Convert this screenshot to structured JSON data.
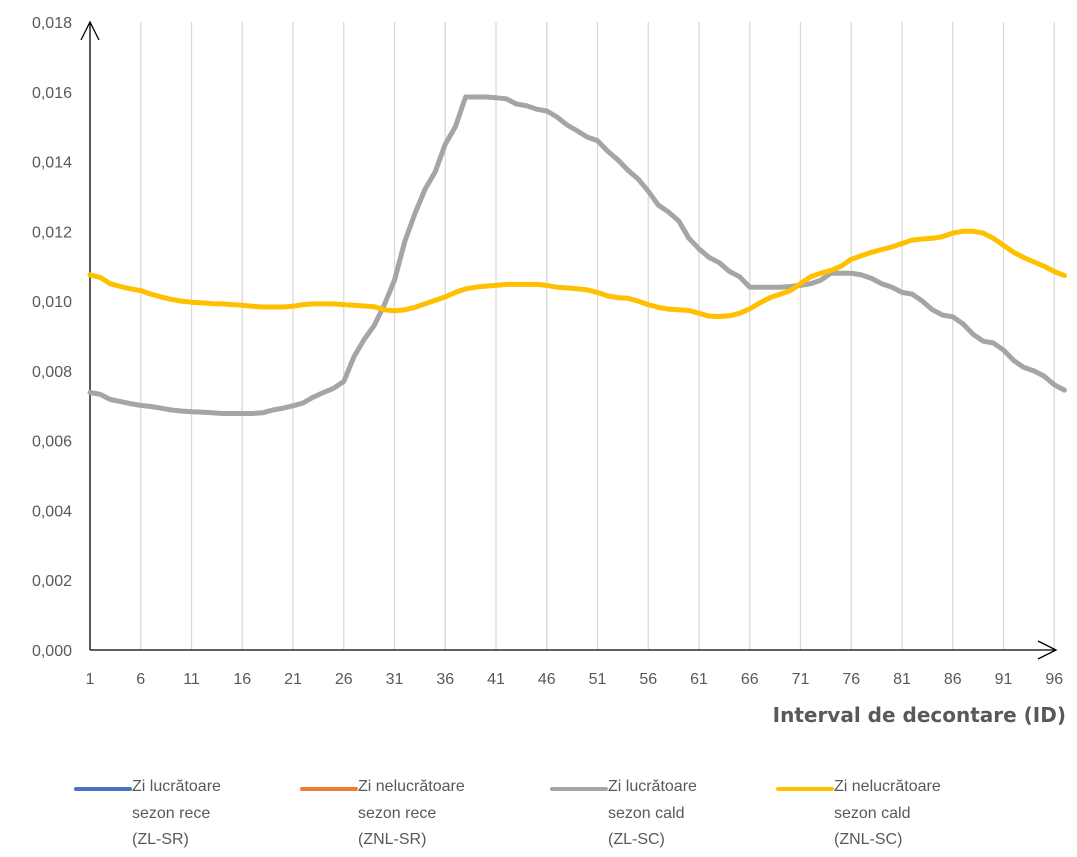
{
  "chart_data": {
    "type": "line",
    "xlabel": "Interval de decontare (ID)",
    "ylabel": "",
    "xlim": [
      1,
      96
    ],
    "ylim": [
      0,
      0.018
    ],
    "ytick_step": 0.002,
    "xticks": [
      1,
      6,
      11,
      16,
      21,
      26,
      31,
      36,
      41,
      46,
      51,
      56,
      61,
      66,
      71,
      76,
      81,
      86,
      91,
      96
    ],
    "yticks": [
      "0,000",
      "0,002",
      "0,004",
      "0,006",
      "0,008",
      "0,010",
      "0,012",
      "0,014",
      "0,016",
      "0,018"
    ],
    "grid": "vertical",
    "legend_position": "bottom",
    "series": [
      {
        "name": "Zi lucrătoare\nsezon rece\n(ZL-SR)",
        "color": "#4472C4",
        "visible": false,
        "values": []
      },
      {
        "name": "Zi nelucrătoare\nsezon rece\n(ZNL-SR)",
        "color": "#ED7D31",
        "visible": false,
        "values": []
      },
      {
        "name": "Zi lucrătoare\nsezon cald\n(ZL-SC)",
        "color": "#A5A5A5",
        "visible": true,
        "points": [
          [
            1,
            0.00738
          ],
          [
            2,
            0.00733
          ],
          [
            3,
            0.00718
          ],
          [
            4,
            0.00712
          ],
          [
            5,
            0.00706
          ],
          [
            6,
            0.00701
          ],
          [
            7,
            0.00698
          ],
          [
            8,
            0.00693
          ],
          [
            9,
            0.00688
          ],
          [
            10,
            0.00685
          ],
          [
            11,
            0.00683
          ],
          [
            12,
            0.00682
          ],
          [
            13,
            0.0068
          ],
          [
            14,
            0.00678
          ],
          [
            15,
            0.00678
          ],
          [
            16,
            0.00678
          ],
          [
            17,
            0.00678
          ],
          [
            18,
            0.0068
          ],
          [
            19,
            0.00688
          ],
          [
            20,
            0.00693
          ],
          [
            21,
            0.007
          ],
          [
            22,
            0.00708
          ],
          [
            23,
            0.00725
          ],
          [
            24,
            0.00738
          ],
          [
            25,
            0.0075
          ],
          [
            26,
            0.0077
          ],
          [
            27,
            0.0084
          ],
          [
            28,
            0.0089
          ],
          [
            29,
            0.0093
          ],
          [
            30,
            0.0099
          ],
          [
            31,
            0.0106
          ],
          [
            32,
            0.0117
          ],
          [
            33,
            0.0125
          ],
          [
            34,
            0.0132
          ],
          [
            35,
            0.0137
          ],
          [
            36,
            0.0145
          ],
          [
            37,
            0.015
          ],
          [
            38,
            0.01585
          ],
          [
            39,
            0.01585
          ],
          [
            40,
            0.01585
          ],
          [
            41,
            0.01583
          ],
          [
            42,
            0.0158
          ],
          [
            43,
            0.01565
          ],
          [
            44,
            0.0156
          ],
          [
            45,
            0.0155
          ],
          [
            46,
            0.01545
          ],
          [
            47,
            0.01528
          ],
          [
            48,
            0.01505
          ],
          [
            49,
            0.01488
          ],
          [
            50,
            0.0147
          ],
          [
            51,
            0.0146
          ],
          [
            52,
            0.0143
          ],
          [
            53,
            0.01405
          ],
          [
            54,
            0.01375
          ],
          [
            55,
            0.0135
          ],
          [
            56,
            0.01315
          ],
          [
            57,
            0.01275
          ],
          [
            58,
            0.01255
          ],
          [
            59,
            0.0123
          ],
          [
            60,
            0.0118
          ],
          [
            61,
            0.0115
          ],
          [
            62,
            0.01125
          ],
          [
            63,
            0.0111
          ],
          [
            64,
            0.01085
          ],
          [
            65,
            0.0107
          ],
          [
            66,
            0.0104
          ],
          [
            67,
            0.0104
          ],
          [
            68,
            0.0104
          ],
          [
            69,
            0.0104
          ],
          [
            70,
            0.01042
          ],
          [
            71,
            0.01045
          ],
          [
            72,
            0.0105
          ],
          [
            73,
            0.0106
          ],
          [
            74,
            0.0108
          ],
          [
            75,
            0.0108
          ],
          [
            76,
            0.0108
          ],
          [
            77,
            0.01075
          ],
          [
            78,
            0.01065
          ],
          [
            79,
            0.0105
          ],
          [
            80,
            0.0104
          ],
          [
            81,
            0.01025
          ],
          [
            82,
            0.0102
          ],
          [
            83,
            0.01
          ],
          [
            84,
            0.00975
          ],
          [
            85,
            0.0096
          ],
          [
            86,
            0.00955
          ],
          [
            87,
            0.00935
          ],
          [
            88,
            0.00905
          ],
          [
            89,
            0.00885
          ],
          [
            90,
            0.0088
          ],
          [
            91,
            0.0086
          ],
          [
            92,
            0.0083
          ],
          [
            93,
            0.0081
          ],
          [
            94,
            0.008
          ],
          [
            95,
            0.00785
          ],
          [
            96,
            0.0076
          ],
          [
            97,
            0.00745
          ]
        ]
      },
      {
        "name": "Zi nelucrătoare\nsezon cald\n(ZNL-SC)",
        "color": "#FFC000",
        "visible": true,
        "points": [
          [
            1,
            0.01075
          ],
          [
            2,
            0.01068
          ],
          [
            3,
            0.0105
          ],
          [
            4,
            0.01042
          ],
          [
            5,
            0.01035
          ],
          [
            6,
            0.0103
          ],
          [
            7,
            0.0102
          ],
          [
            8,
            0.01012
          ],
          [
            9,
            0.01005
          ],
          [
            10,
            0.01
          ],
          [
            11,
            0.00997
          ],
          [
            12,
            0.00995
          ],
          [
            13,
            0.00993
          ],
          [
            14,
            0.00992
          ],
          [
            15,
            0.0099
          ],
          [
            16,
            0.00988
          ],
          [
            17,
            0.00985
          ],
          [
            18,
            0.00983
          ],
          [
            19,
            0.00983
          ],
          [
            20,
            0.00983
          ],
          [
            21,
            0.00985
          ],
          [
            22,
            0.0099
          ],
          [
            23,
            0.00992
          ],
          [
            24,
            0.00992
          ],
          [
            25,
            0.00992
          ],
          [
            26,
            0.0099
          ],
          [
            27,
            0.00988
          ],
          [
            28,
            0.00986
          ],
          [
            29,
            0.00984
          ],
          [
            30,
            0.00975
          ],
          [
            31,
            0.00972
          ],
          [
            32,
            0.00975
          ],
          [
            33,
            0.00982
          ],
          [
            34,
            0.00992
          ],
          [
            35,
            0.01002
          ],
          [
            36,
            0.01012
          ],
          [
            37,
            0.01025
          ],
          [
            38,
            0.01035
          ],
          [
            39,
            0.0104
          ],
          [
            40,
            0.01043
          ],
          [
            41,
            0.01045
          ],
          [
            42,
            0.01048
          ],
          [
            43,
            0.01048
          ],
          [
            44,
            0.01048
          ],
          [
            45,
            0.01048
          ],
          [
            46,
            0.01045
          ],
          [
            47,
            0.0104
          ],
          [
            48,
            0.01038
          ],
          [
            49,
            0.01035
          ],
          [
            50,
            0.01032
          ],
          [
            51,
            0.01025
          ],
          [
            52,
            0.01015
          ],
          [
            53,
            0.0101
          ],
          [
            54,
            0.01008
          ],
          [
            55,
            0.01
          ],
          [
            56,
            0.0099
          ],
          [
            57,
            0.00982
          ],
          [
            58,
            0.00977
          ],
          [
            59,
            0.00975
          ],
          [
            60,
            0.00973
          ],
          [
            61,
            0.00965
          ],
          [
            62,
            0.00957
          ],
          [
            63,
            0.00956
          ],
          [
            64,
            0.00958
          ],
          [
            65,
            0.00965
          ],
          [
            66,
            0.00978
          ],
          [
            67,
            0.00995
          ],
          [
            68,
            0.0101
          ],
          [
            69,
            0.0102
          ],
          [
            70,
            0.0103
          ],
          [
            71,
            0.0105
          ],
          [
            72,
            0.0107
          ],
          [
            73,
            0.0108
          ],
          [
            74,
            0.01088
          ],
          [
            75,
            0.011
          ],
          [
            76,
            0.0112
          ],
          [
            77,
            0.0113
          ],
          [
            78,
            0.0114
          ],
          [
            79,
            0.01148
          ],
          [
            80,
            0.01155
          ],
          [
            81,
            0.01165
          ],
          [
            82,
            0.01175
          ],
          [
            83,
            0.01178
          ],
          [
            84,
            0.0118
          ],
          [
            85,
            0.01185
          ],
          [
            86,
            0.01195
          ],
          [
            87,
            0.012
          ],
          [
            88,
            0.012
          ],
          [
            89,
            0.01195
          ],
          [
            90,
            0.0118
          ],
          [
            91,
            0.0116
          ],
          [
            92,
            0.0114
          ],
          [
            93,
            0.01125
          ],
          [
            94,
            0.01112
          ],
          [
            95,
            0.011
          ],
          [
            96,
            0.01085
          ],
          [
            97,
            0.01073
          ]
        ]
      }
    ]
  },
  "colors": {
    "grid": "#D9D9D9",
    "axis": "#000000",
    "text": "#595959"
  }
}
